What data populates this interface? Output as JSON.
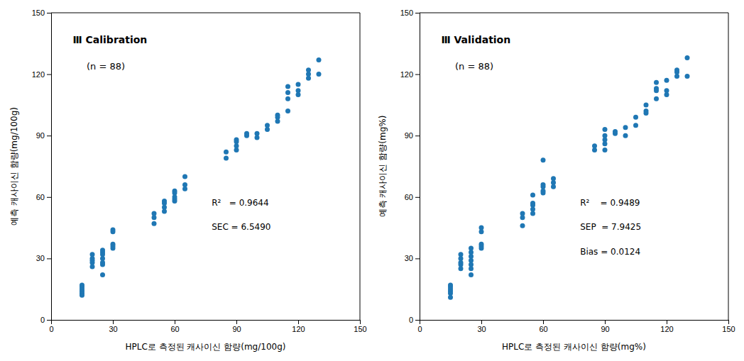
{
  "chart_data": [
    {
      "type": "scatter",
      "title": "Ⅲ Calibration",
      "subtitle": "(n = 88)",
      "annotations": [
        "R²   = 0.9644",
        "SEC = 6.5490"
      ],
      "xlabel": "HPLC로 측정된 캐사이신 함량(mg/100g)",
      "ylabel": "예측 캐사이신 함량(mg/100g)",
      "xlim": [
        0,
        150
      ],
      "ylim": [
        0,
        150
      ],
      "xticks": [
        0,
        30,
        60,
        90,
        120,
        150
      ],
      "yticks": [
        0,
        30,
        60,
        90,
        120,
        150
      ],
      "grid": false,
      "x": [
        15,
        15,
        15,
        15,
        15,
        15,
        20,
        20,
        20,
        20,
        20,
        25,
        25,
        25,
        25,
        25,
        25,
        25,
        30,
        30,
        30,
        30,
        30,
        50,
        50,
        50,
        55,
        55,
        55,
        55,
        60,
        60,
        60,
        60,
        60,
        65,
        65,
        65,
        85,
        85,
        90,
        90,
        90,
        90,
        95,
        95,
        100,
        100,
        105,
        105,
        110,
        110,
        110,
        115,
        115,
        115,
        115,
        120,
        120,
        120,
        125,
        125,
        125,
        130,
        130
      ],
      "values": [
        12,
        13,
        14,
        15,
        16,
        17,
        26,
        28,
        29,
        30,
        32,
        22,
        27,
        28,
        30,
        32,
        33,
        34,
        35,
        36,
        37,
        43,
        44,
        47,
        50,
        52,
        53,
        55,
        57,
        58,
        58,
        59,
        60,
        62,
        63,
        64,
        66,
        70,
        79,
        82,
        83,
        85,
        87,
        88,
        90,
        91,
        89,
        91,
        93,
        95,
        97,
        99,
        100,
        102,
        108,
        111,
        114,
        110,
        112,
        115,
        118,
        120,
        122,
        120,
        127
      ]
    },
    {
      "type": "scatter",
      "title": "Ⅲ Validation",
      "subtitle": "(n = 88)",
      "annotations": [
        "R²    = 0.9489",
        "SEP  = 7.9425",
        "Bias = 0.0124"
      ],
      "xlabel": "HPLC로 측정된 캐사이신 함량(mg%)",
      "ylabel": "예측 캐사이신 함량(mg%)",
      "xlim": [
        0,
        150
      ],
      "ylim": [
        0,
        150
      ],
      "xticks": [
        0,
        30,
        60,
        90,
        120,
        150
      ],
      "yticks": [
        0,
        30,
        60,
        90,
        120,
        150
      ],
      "grid": false,
      "x": [
        15,
        15,
        15,
        15,
        15,
        15,
        20,
        20,
        20,
        20,
        20,
        25,
        25,
        25,
        25,
        25,
        25,
        25,
        30,
        30,
        30,
        30,
        30,
        50,
        50,
        50,
        55,
        55,
        55,
        55,
        55,
        60,
        60,
        60,
        60,
        60,
        65,
        65,
        65,
        85,
        85,
        90,
        90,
        90,
        90,
        90,
        95,
        95,
        100,
        100,
        105,
        105,
        110,
        110,
        110,
        115,
        115,
        115,
        115,
        120,
        120,
        120,
        125,
        125,
        125,
        130,
        130
      ],
      "values": [
        11,
        13,
        14,
        15,
        16,
        17,
        25,
        27,
        28,
        30,
        32,
        22,
        25,
        27,
        29,
        31,
        33,
        35,
        35,
        36,
        37,
        43,
        45,
        46,
        50,
        52,
        52,
        54,
        56,
        57,
        61,
        62,
        63,
        65,
        66,
        78,
        65,
        67,
        69,
        83,
        85,
        83,
        86,
        88,
        90,
        93,
        91,
        92,
        90,
        94,
        95,
        99,
        101,
        102,
        105,
        108,
        112,
        113,
        116,
        110,
        112,
        117,
        119,
        121,
        122,
        119,
        128
      ]
    }
  ]
}
